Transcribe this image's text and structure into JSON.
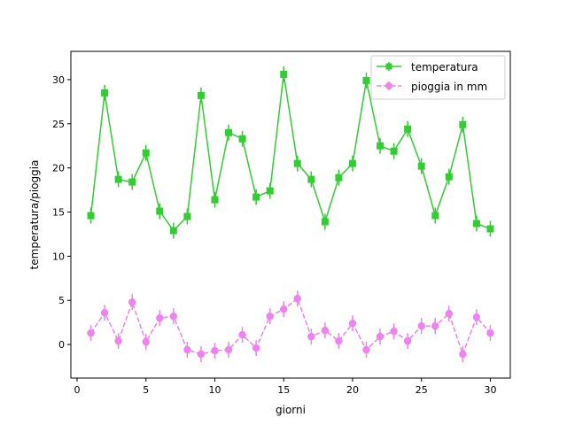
{
  "chart_data": {
    "type": "line",
    "xlabel": "giorni",
    "ylabel": "temperatura/pioggia",
    "xlim": [
      -0.45,
      31.45
    ],
    "ylim": [
      -3.8,
      33.2
    ],
    "xticks": [
      0,
      5,
      10,
      15,
      20,
      25,
      30
    ],
    "yticks": [
      0,
      5,
      10,
      15,
      20,
      25,
      30
    ],
    "grid": false,
    "legend_position": "top-right",
    "x": [
      1,
      2,
      3,
      4,
      5,
      6,
      7,
      8,
      9,
      10,
      11,
      12,
      13,
      14,
      15,
      16,
      17,
      18,
      19,
      20,
      21,
      22,
      23,
      24,
      25,
      26,
      27,
      28,
      29,
      30
    ],
    "series": [
      {
        "name": "temperatura",
        "color": "#32cd32",
        "marker": "square",
        "linestyle": "solid",
        "values": [
          14.6,
          28.5,
          18.7,
          18.4,
          21.7,
          15.1,
          12.9,
          14.5,
          28.2,
          16.4,
          24.0,
          23.3,
          16.7,
          17.4,
          30.6,
          20.5,
          18.7,
          13.9,
          18.9,
          20.5,
          29.9,
          22.5,
          21.9,
          24.4,
          20.2,
          14.6,
          19.0,
          24.9,
          13.7,
          13.1
        ],
        "error": 0.9
      },
      {
        "name": "pioggia in mm",
        "color": "#ee82ee",
        "marker": "circle",
        "linestyle": "dashed",
        "values": [
          1.3,
          3.6,
          0.4,
          4.8,
          0.3,
          3.0,
          3.2,
          -0.6,
          -1.1,
          -0.7,
          -0.6,
          1.1,
          -0.4,
          3.2,
          4.0,
          5.2,
          0.9,
          1.6,
          0.4,
          2.4,
          -0.6,
          0.9,
          1.5,
          0.4,
          2.1,
          2.1,
          3.5,
          -1.1,
          3.1,
          1.3
        ],
        "error": 0.9
      }
    ]
  }
}
